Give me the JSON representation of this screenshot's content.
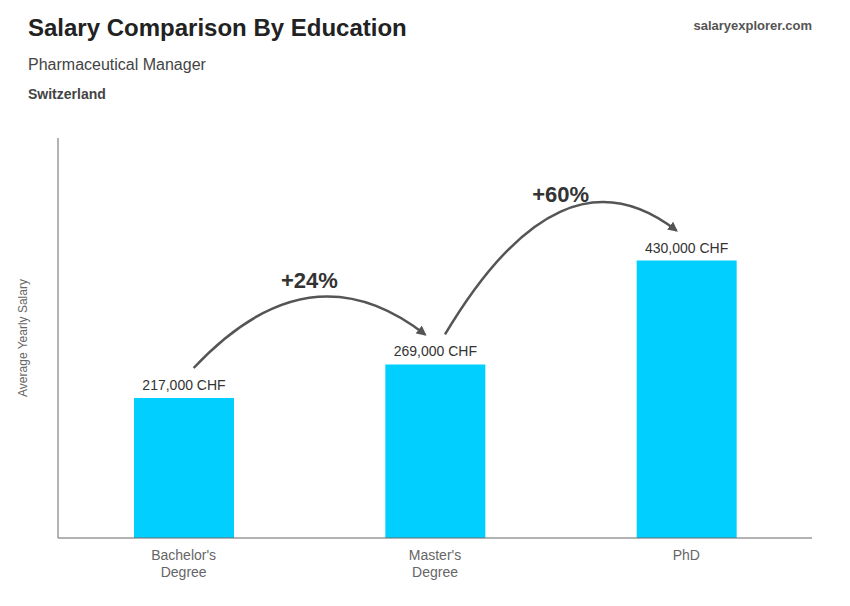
{
  "chart_data": {
    "type": "bar",
    "title": "Salary Comparison By Education",
    "subtitle": "Pharmaceutical Manager",
    "ylabel": "Average Yearly Salary",
    "categories": [
      "Bachelor's\nDegree",
      "Master's\nDegree",
      "PhD"
    ],
    "values": [
      217000,
      269000,
      430000
    ],
    "value_labels": [
      "217,000 CHF",
      "269,000 CHF",
      "430,000 CHF"
    ],
    "color": "#00CFFF",
    "ylim": [
      0,
      620000
    ],
    "grid": false,
    "data_labels": true,
    "tick_labels": "x",
    "annotations": [
      "Switzerland",
      "salaryexplorer.com",
      "+24%",
      "+60%"
    ]
  }
}
